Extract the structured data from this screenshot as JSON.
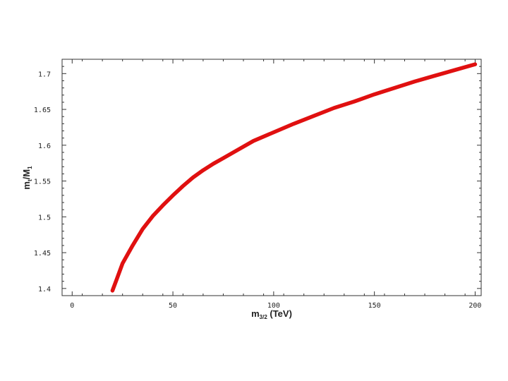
{
  "chart_data": {
    "type": "line",
    "title": "",
    "xlabel": "m",
    "xlabel_sub": "3/2",
    "xlabel_unit": " (TeV)",
    "ylabel": "m",
    "ylabel_sub": "t",
    "ylabel_mid": "/M",
    "ylabel_sub2": "1",
    "xlim": [
      -5,
      203
    ],
    "ylim": [
      1.39,
      1.72
    ],
    "xticks": [
      0,
      50,
      100,
      150,
      200
    ],
    "xtick_labels": [
      "0",
      "50",
      "100",
      "150",
      "200"
    ],
    "yticks": [
      1.4,
      1.45,
      1.5,
      1.55,
      1.6,
      1.65,
      1.7
    ],
    "ytick_labels": [
      "1.4",
      "1.45",
      "1.5",
      "1.55",
      "1.6",
      "1.65",
      "1.7"
    ],
    "grid": false,
    "series": [
      {
        "color": "#e01010",
        "x": [
          20,
          22,
          25,
          30,
          35,
          40,
          45,
          50,
          55,
          60,
          65,
          70,
          75,
          80,
          90,
          100,
          110,
          120,
          130,
          140,
          150,
          160,
          170,
          180,
          190,
          200
        ],
        "y": [
          1.397,
          1.412,
          1.435,
          1.46,
          1.483,
          1.501,
          1.516,
          1.53,
          1.543,
          1.555,
          1.565,
          1.574,
          1.582,
          1.59,
          1.606,
          1.618,
          1.63,
          1.641,
          1.652,
          1.661,
          1.671,
          1.68,
          1.689,
          1.697,
          1.705,
          1.713
        ]
      }
    ]
  }
}
